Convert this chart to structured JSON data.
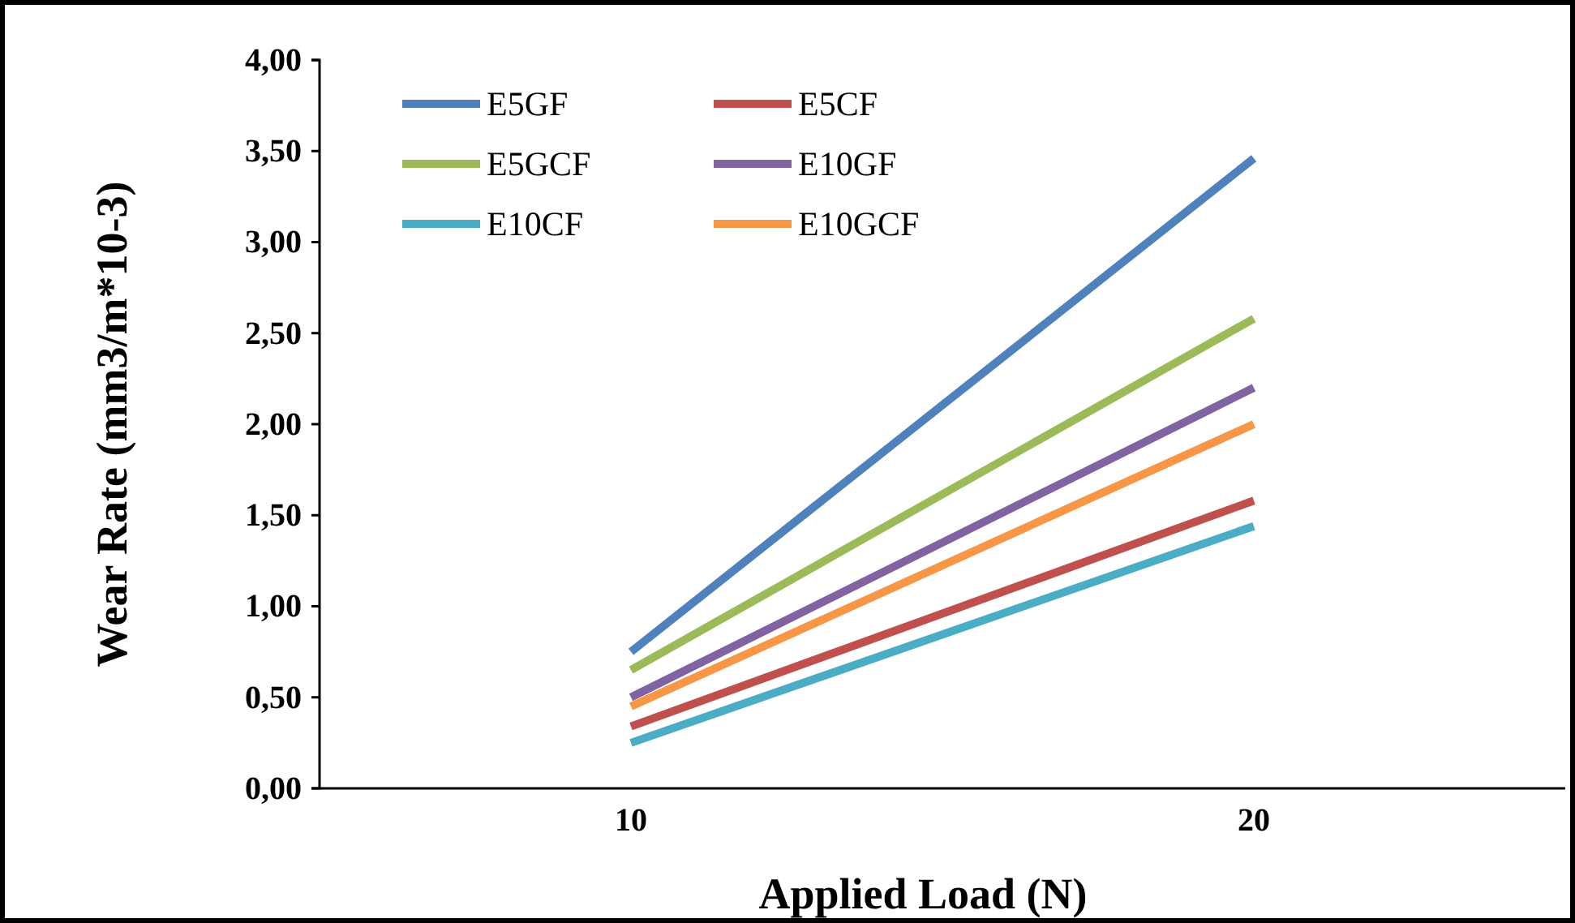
{
  "chart_data": {
    "type": "line",
    "xlabel": "Applied Load (N)",
    "ylabel": "Wear Rate (mm3/m*10-3)",
    "categories": [
      "10",
      "20"
    ],
    "series": [
      {
        "name": "E5GF",
        "color": "#4f81bd",
        "values": [
          0.75,
          3.46
        ]
      },
      {
        "name": "E5CF",
        "color": "#c0504d",
        "values": [
          0.34,
          1.58
        ]
      },
      {
        "name": "E5GCF",
        "color": "#9bbb59",
        "values": [
          0.65,
          2.58
        ]
      },
      {
        "name": "E10GF",
        "color": "#8064a2",
        "values": [
          0.5,
          2.2
        ]
      },
      {
        "name": "E10CF",
        "color": "#4bacc6",
        "values": [
          0.25,
          1.44
        ]
      },
      {
        "name": "E10GCF",
        "color": "#f79646",
        "values": [
          0.45,
          2.0
        ]
      }
    ],
    "ylim": [
      0,
      4
    ],
    "yticks": [
      {
        "value": 0,
        "label": "0,00"
      },
      {
        "value": 0.5,
        "label": "0,50"
      },
      {
        "value": 1,
        "label": "1,00"
      },
      {
        "value": 1.5,
        "label": "1,50"
      },
      {
        "value": 2,
        "label": "2,00"
      },
      {
        "value": 2.5,
        "label": "2,50"
      },
      {
        "value": 3,
        "label": "3,00"
      },
      {
        "value": 3.5,
        "label": "3,50"
      },
      {
        "value": 4,
        "label": "4,00"
      }
    ],
    "legend": "top left",
    "grid": false,
    "marker": "none",
    "line_style": "solid"
  }
}
